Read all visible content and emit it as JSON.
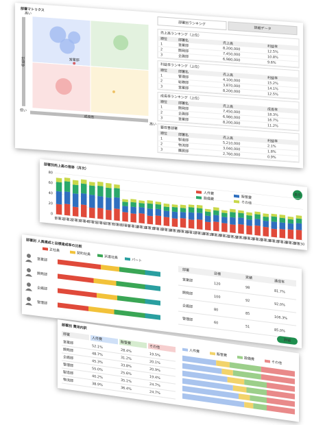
{
  "panel1": {
    "title": "部署マトリクス",
    "y_high": "高い",
    "y_label": "収益性",
    "y_low": "低い",
    "x_label": "成長性",
    "x_high": "高い",
    "bubbles": [
      {
        "x": 22,
        "y": 82,
        "size": 12,
        "color": "#9db8f0"
      },
      {
        "x": 36,
        "y": 80,
        "size": 9,
        "color": "#9db8f0"
      },
      {
        "x": 30,
        "y": 70,
        "size": 11,
        "color": "#9db8f0"
      },
      {
        "x": 76,
        "y": 78,
        "size": 11,
        "color": "#a8d8a0"
      },
      {
        "x": 27,
        "y": 26,
        "size": 12,
        "color": "#f0a0a0"
      },
      {
        "x": 70,
        "y": 24,
        "size": 2,
        "color": "#e8b040"
      },
      {
        "x": 36,
        "y": 52,
        "size": 2,
        "color": "#d33333",
        "label": "営業部"
      }
    ],
    "tabs": [
      "部署別ランキング",
      "詳細データ"
    ],
    "tables": [
      {
        "title": "売上高ランキング（上位）",
        "header": [
          "順位",
          "部署名",
          "売上高",
          "利益率"
        ],
        "rows": [
          [
            "1",
            "営業部",
            "8,200,000",
            "12.5%"
          ],
          [
            "2",
            "開発部",
            "7,450,000",
            "10.8%"
          ],
          [
            "3",
            "企画部",
            "6,980,000",
            "9.6%"
          ]
        ]
      },
      {
        "title": "利益率ランキング（上位）",
        "header": [
          "順位",
          "部署名",
          "売上高",
          "利益率"
        ],
        "rows": [
          [
            "1",
            "管理部",
            "4,100,000",
            "15.2%"
          ],
          [
            "2",
            "総務部",
            "3,870,000",
            "14.1%"
          ],
          [
            "3",
            "営業部",
            "8,200,000",
            "12.5%"
          ]
        ]
      },
      {
        "title": "成長率ランキング（上位）",
        "header": [
          "順位",
          "部署名",
          "売上高",
          "成長率"
        ],
        "rows": [
          [
            "1",
            "開発部",
            "7,450,000",
            "18.3%"
          ],
          [
            "2",
            "企画部",
            "6,980,000",
            "16.7%"
          ],
          [
            "3",
            "営業部",
            "8,200,000",
            "11.2%"
          ]
        ]
      },
      {
        "title": "要改善部署",
        "header": [
          "順位",
          "部署名",
          "売上高",
          "利益率"
        ],
        "rows": [
          [
            "1",
            "製造部",
            "5,210,000",
            "2.1%"
          ],
          [
            "2",
            "物流部",
            "3,040,000",
            "1.8%"
          ],
          [
            "3",
            "購買部",
            "2,760,000",
            "0.9%"
          ]
        ]
      }
    ]
  },
  "panel2": {
    "title": "部署別売上高の推移（月次）",
    "button": "表示",
    "chart_data": {
      "type": "stacked-bar",
      "categories": [
        "部署1",
        "部署2",
        "部署3",
        "部署4",
        "部署5",
        "部署6",
        "部署7",
        "部署8",
        "部署9",
        "部署10",
        "部署11",
        "部署12",
        "部署13",
        "部署14",
        "部署15",
        "部署16",
        "部署17",
        "部署18",
        "部署19",
        "部署20",
        "部署21",
        "部署22",
        "部署23",
        "部署24",
        "部署25",
        "部署26",
        "部署27",
        "部署28",
        "部署29",
        "部署30"
      ],
      "series": [
        {
          "name": "人件費",
          "color": "#e04a3a",
          "values": [
            20,
            22,
            18,
            24,
            20,
            21,
            19,
            23,
            18,
            17,
            19,
            16,
            18,
            17,
            16,
            18,
            17,
            19,
            16,
            18,
            17,
            16,
            18,
            17,
            19,
            18,
            16,
            17,
            18,
            19
          ]
        },
        {
          "name": "販管費",
          "color": "#2f6fbf",
          "values": [
            25,
            24,
            26,
            22,
            25,
            23,
            24,
            22,
            12,
            13,
            12,
            14,
            13,
            12,
            13,
            12,
            14,
            13,
            12,
            13,
            12,
            14,
            13,
            12,
            13,
            12,
            14,
            13,
            12,
            13
          ]
        },
        {
          "name": "設備費",
          "color": "#2aa86a",
          "values": [
            18,
            20,
            17,
            19,
            18,
            20,
            19,
            18,
            8,
            9,
            8,
            10,
            9,
            8,
            9,
            8,
            10,
            9,
            8,
            9,
            8,
            10,
            9,
            8,
            9,
            8,
            10,
            9,
            8,
            9
          ]
        },
        {
          "name": "その他",
          "color": "#c8d84a",
          "values": [
            8,
            7,
            9,
            8,
            7,
            8,
            9,
            7,
            5,
            6,
            5,
            6,
            5,
            6,
            5,
            6,
            5,
            6,
            5,
            6,
            5,
            6,
            5,
            6,
            5,
            6,
            5,
            6,
            5,
            6
          ]
        }
      ],
      "ylim": [
        0,
        80
      ],
      "yticks": [
        0,
        20,
        40,
        60,
        80
      ],
      "grid": true
    }
  },
  "panel3": {
    "title": "部署別 人員構成と目標達成率の比較",
    "button": "詳細",
    "legend": [
      {
        "name": "正社員",
        "color": "#e04a3a"
      },
      {
        "name": "契約社員",
        "color": "#f2c23a"
      },
      {
        "name": "派遣社員",
        "color": "#3aa655"
      },
      {
        "name": "パート",
        "color": "#2a9fa0"
      }
    ],
    "rows": [
      {
        "name": "営業部",
        "values": [
          42,
          18,
          25,
          15
        ]
      },
      {
        "name": "開発部",
        "values": [
          35,
          22,
          28,
          15
        ]
      },
      {
        "name": "企画部",
        "values": [
          38,
          20,
          27,
          15
        ]
      },
      {
        "name": "管理部",
        "values": [
          30,
          25,
          30,
          15
        ]
      }
    ],
    "table": {
      "header": [
        "部署",
        "目標",
        "実績",
        "達成率"
      ],
      "rows": [
        [
          "営業部",
          "120",
          "98",
          "81.7%"
        ],
        [
          "開発部",
          "100",
          "92",
          "92.0%"
        ],
        [
          "企画部",
          "80",
          "85",
          "106.3%"
        ],
        [
          "管理部",
          "60",
          "51",
          "85.0%"
        ]
      ]
    }
  },
  "panel4": {
    "title": "部署別 費用内訳",
    "table": {
      "header": [
        "部署",
        "人件費",
        "販管費",
        "その他"
      ],
      "rows": [
        [
          "営業部",
          "52.1%",
          "28.4%",
          "19.5%"
        ],
        [
          "開発部",
          "48.7%",
          "31.2%",
          "20.1%"
        ],
        [
          "企画部",
          "45.3%",
          "33.8%",
          "20.9%"
        ],
        [
          "管理部",
          "55.0%",
          "25.6%",
          "19.4%"
        ],
        [
          "製造部",
          "40.2%",
          "35.1%",
          "24.7%"
        ],
        [
          "物流部",
          "38.9%",
          "36.4%",
          "24.7%"
        ]
      ]
    },
    "legend": [
      {
        "name": "人件費",
        "color": "#a9c4ee"
      },
      {
        "name": "販管費",
        "color": "#f2d36b"
      },
      {
        "name": "設備費",
        "color": "#9ccf8a"
      },
      {
        "name": "その他",
        "color": "#e98a8a"
      }
    ],
    "bars": [
      [
        30,
        12,
        28,
        30
      ],
      [
        35,
        10,
        25,
        30
      ],
      [
        40,
        15,
        20,
        25
      ],
      [
        45,
        12,
        18,
        25
      ],
      [
        50,
        10,
        15,
        25
      ],
      [
        55,
        8,
        12,
        25
      ]
    ]
  }
}
